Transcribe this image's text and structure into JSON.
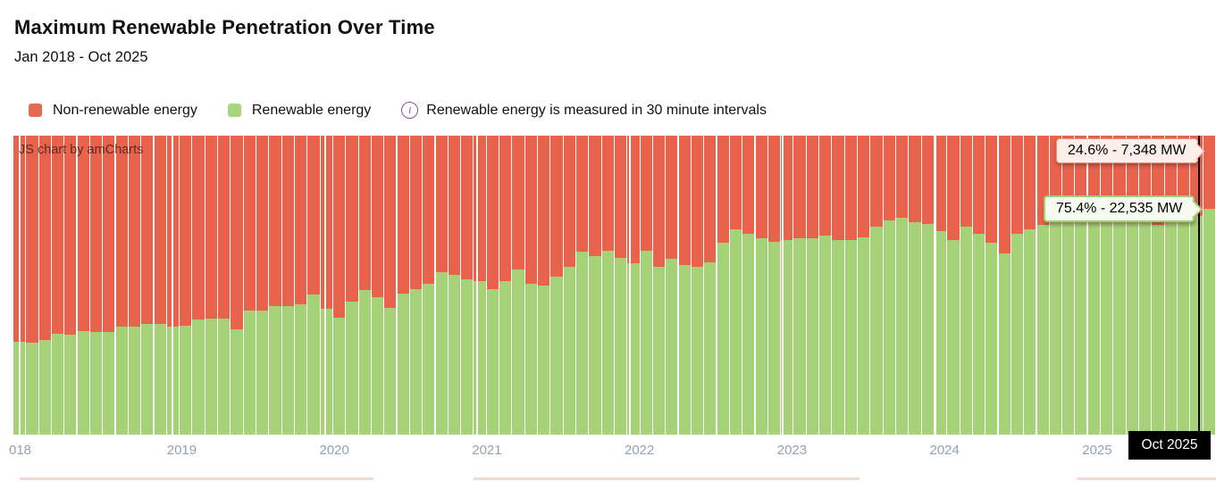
{
  "header": {
    "title": "Maximum Renewable Penetration Over Time",
    "subtitle": "Jan 2018 - Oct 2025"
  },
  "legend": {
    "items": [
      {
        "label": "Non-renewable energy",
        "color": "#E8684F"
      },
      {
        "label": "Renewable energy",
        "color": "#A9D67D"
      }
    ],
    "note": {
      "icon": "i",
      "text": "Renewable energy is measured in 30 minute intervals"
    }
  },
  "chart": {
    "watermark": "JS chart by amCharts",
    "tooltips": {
      "non_renewable": "24.6% - 7,348 MW",
      "renewable": "75.4% - 22,535 MW"
    },
    "cursor_label": "Oct 2025"
  },
  "chart_data": {
    "type": "bar",
    "subtype": "100%-stacked-columns",
    "title": "Maximum Renewable Penetration Over Time",
    "x_start": "2018-01",
    "x_end": "2025-10",
    "ylim": [
      0,
      100
    ],
    "legend_position": "top",
    "grid": "vertical-year-lines",
    "x_tick_labels": [
      "018",
      "2019",
      "2020",
      "2021",
      "2022",
      "2023",
      "2024",
      "2025"
    ],
    "categories": [
      "2018-01",
      "2018-02",
      "2018-03",
      "2018-04",
      "2018-05",
      "2018-06",
      "2018-07",
      "2018-08",
      "2018-09",
      "2018-10",
      "2018-11",
      "2018-12",
      "2019-01",
      "2019-02",
      "2019-03",
      "2019-04",
      "2019-05",
      "2019-06",
      "2019-07",
      "2019-08",
      "2019-09",
      "2019-10",
      "2019-11",
      "2019-12",
      "2020-01",
      "2020-02",
      "2020-03",
      "2020-04",
      "2020-05",
      "2020-06",
      "2020-07",
      "2020-08",
      "2020-09",
      "2020-10",
      "2020-11",
      "2020-12",
      "2021-01",
      "2021-02",
      "2021-03",
      "2021-04",
      "2021-05",
      "2021-06",
      "2021-07",
      "2021-08",
      "2021-09",
      "2021-10",
      "2021-11",
      "2021-12",
      "2022-01",
      "2022-02",
      "2022-03",
      "2022-04",
      "2022-05",
      "2022-06",
      "2022-07",
      "2022-08",
      "2022-09",
      "2022-10",
      "2022-11",
      "2022-12",
      "2023-01",
      "2023-02",
      "2023-03",
      "2023-04",
      "2023-05",
      "2023-06",
      "2023-07",
      "2023-08",
      "2023-09",
      "2023-10",
      "2023-11",
      "2023-12",
      "2024-01",
      "2024-02",
      "2024-03",
      "2024-04",
      "2024-05",
      "2024-06",
      "2024-07",
      "2024-08",
      "2024-09",
      "2024-10",
      "2024-11",
      "2024-12",
      "2025-01",
      "2025-02",
      "2025-03",
      "2025-04",
      "2025-05",
      "2025-06",
      "2025-07",
      "2025-08",
      "2025-09",
      "2025-10"
    ],
    "series": [
      {
        "name": "Non-renewable energy",
        "color": "#E8624C",
        "stack_role": "top",
        "note": "values are the complement: 100 - renewable_pct"
      },
      {
        "name": "Renewable energy",
        "color": "#A5D276",
        "stack_role": "bottom",
        "values_pct": [
          31.1,
          30.8,
          31.7,
          33.7,
          33.5,
          34.7,
          34.3,
          34.3,
          36.0,
          36.0,
          37.0,
          37.0,
          36.0,
          36.5,
          38.5,
          38.8,
          38.8,
          35.3,
          41.4,
          41.4,
          43.0,
          43.0,
          43.5,
          46.8,
          42.0,
          39.0,
          44.4,
          48.3,
          45.9,
          42.4,
          47.3,
          48.8,
          50.3,
          54.2,
          53.3,
          51.8,
          51.3,
          48.8,
          51.3,
          55.2,
          50.3,
          49.8,
          52.8,
          56.2,
          61.1,
          59.7,
          61.6,
          59.2,
          57.2,
          61.6,
          56.2,
          58.7,
          56.7,
          56.2,
          57.7,
          64.1,
          68.6,
          67.1,
          65.6,
          64.6,
          65.1,
          65.6,
          65.6,
          66.6,
          65.1,
          65.1,
          66.1,
          69.5,
          71.5,
          72.5,
          71.0,
          70.5,
          68.0,
          65.1,
          69.5,
          67.2,
          64.2,
          60.7,
          67.2,
          68.6,
          70.1,
          71.0,
          73.5,
          72.0,
          71.5,
          72.0,
          72.5,
          71.8,
          72.2,
          70.1,
          71.5,
          72.0,
          73.0,
          75.4
        ]
      }
    ],
    "highlight": {
      "category": "2025-10",
      "renewable_label": "75.4% - 22,535 MW",
      "non_renewable_label": "24.6% - 7,348 MW",
      "cursor_axis_label": "Oct 2025"
    }
  }
}
